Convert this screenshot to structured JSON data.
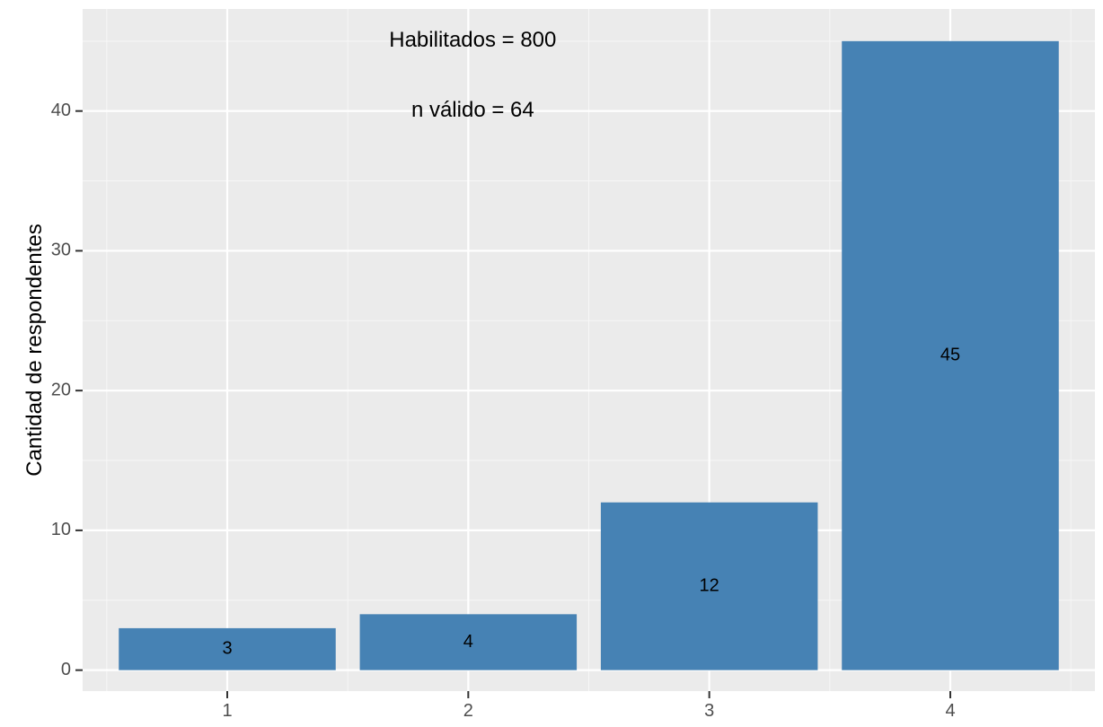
{
  "chart_data": {
    "type": "bar",
    "categories": [
      "1",
      "2",
      "3",
      "4"
    ],
    "values": [
      3,
      4,
      12,
      45
    ],
    "data_labels": [
      "3",
      "4",
      "12",
      "45"
    ],
    "title": "",
    "xlabel": "",
    "ylabel": "Cantidad de respondentes",
    "ylim": [
      -1.5,
      47.3
    ],
    "yticks": [
      0,
      10,
      20,
      30,
      40
    ],
    "ytick_labels": [
      "0",
      "10",
      "20",
      "30",
      "40"
    ],
    "grid": true,
    "legend": "none",
    "annotations": [
      {
        "text": "Habilitados =  800",
        "x": 2,
        "y": 45
      },
      {
        "text": "n válido = 64",
        "x": 2,
        "y": 40
      }
    ],
    "colors": {
      "bar": "#4682B4",
      "panel_background": "#EBEBEB",
      "grid_major": "#FFFFFF",
      "grid_minor": "#F7F7F7",
      "tick_mark": "#333333"
    }
  }
}
